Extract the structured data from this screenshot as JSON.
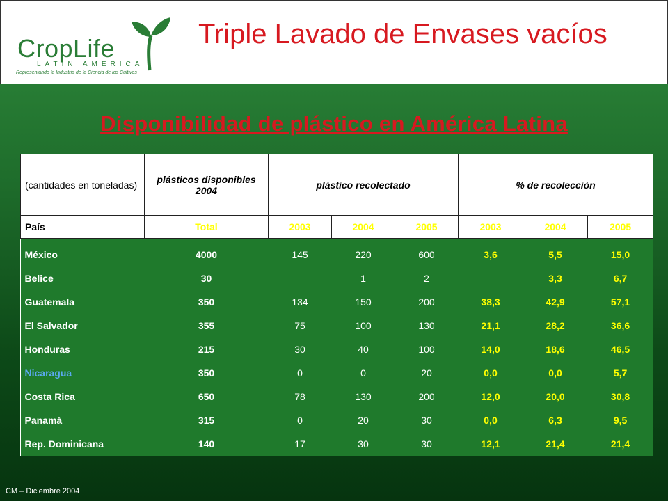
{
  "header": {
    "logo_text": "CropLife",
    "logo_region": "LATIN AMERICA",
    "logo_tagline": "Representando la Industria de la Ciencia de los Cultivos",
    "title": "Triple Lavado de Envases vacíos"
  },
  "subtitle": "Disponibilidad de plástico en América Latina",
  "table": {
    "unit_label": "(cantidades en toneladas)",
    "col_available": "plásticos disponibles 2004",
    "col_collected": "plástico recolectado",
    "col_percent": "% de recolección",
    "pais_label": "País",
    "total_label": "Total",
    "years": [
      "2003",
      "2004",
      "2005",
      "2003",
      "2004",
      "2005"
    ],
    "rows": [
      {
        "country": "México",
        "total": "4000",
        "c2003": "145",
        "c2004": "220",
        "c2005": "600",
        "p2003": "3,6",
        "p2004": "5,5",
        "p2005": "15,0"
      },
      {
        "country": "Belice",
        "total": "30",
        "c2003": "",
        "c2004": "1",
        "c2005": "2",
        "p2003": "",
        "p2004": "3,3",
        "p2005": "6,7"
      },
      {
        "country": "Guatemala",
        "total": "350",
        "c2003": "134",
        "c2004": "150",
        "c2005": "200",
        "p2003": "38,3",
        "p2004": "42,9",
        "p2005": "57,1"
      },
      {
        "country": "El Salvador",
        "total": "355",
        "c2003": "75",
        "c2004": "100",
        "c2005": "130",
        "p2003": "21,1",
        "p2004": "28,2",
        "p2005": "36,6"
      },
      {
        "country": "Honduras",
        "total": "215",
        "c2003": "30",
        "c2004": "40",
        "c2005": "100",
        "p2003": "14,0",
        "p2004": "18,6",
        "p2005": "46,5"
      },
      {
        "country": "Nicaragua",
        "total": "350",
        "c2003": "0",
        "c2004": "0",
        "c2005": "20",
        "p2003": "0,0",
        "p2004": "0,0",
        "p2005": "5,7"
      },
      {
        "country": "Costa Rica",
        "total": "650",
        "c2003": "78",
        "c2004": "130",
        "c2005": "200",
        "p2003": "12,0",
        "p2004": "20,0",
        "p2005": "30,8"
      },
      {
        "country": "Panamá",
        "total": "315",
        "c2003": "0",
        "c2004": "20",
        "c2005": "30",
        "p2003": "0,0",
        "p2004": "6,3",
        "p2005": "9,5"
      },
      {
        "country": "Rep. Dominicana",
        "total": "140",
        "c2003": "17",
        "c2004": "30",
        "c2005": "30",
        "p2003": "12,1",
        "p2004": "21,4",
        "p2005": "21,4"
      }
    ]
  },
  "footer": "CM – Diciembre 2004",
  "colors": {
    "accent_red": "#d71920",
    "brand_green": "#2a7d36",
    "highlight_yellow": "#ffff00",
    "nicaragua_blue": "#5aa9f0"
  }
}
